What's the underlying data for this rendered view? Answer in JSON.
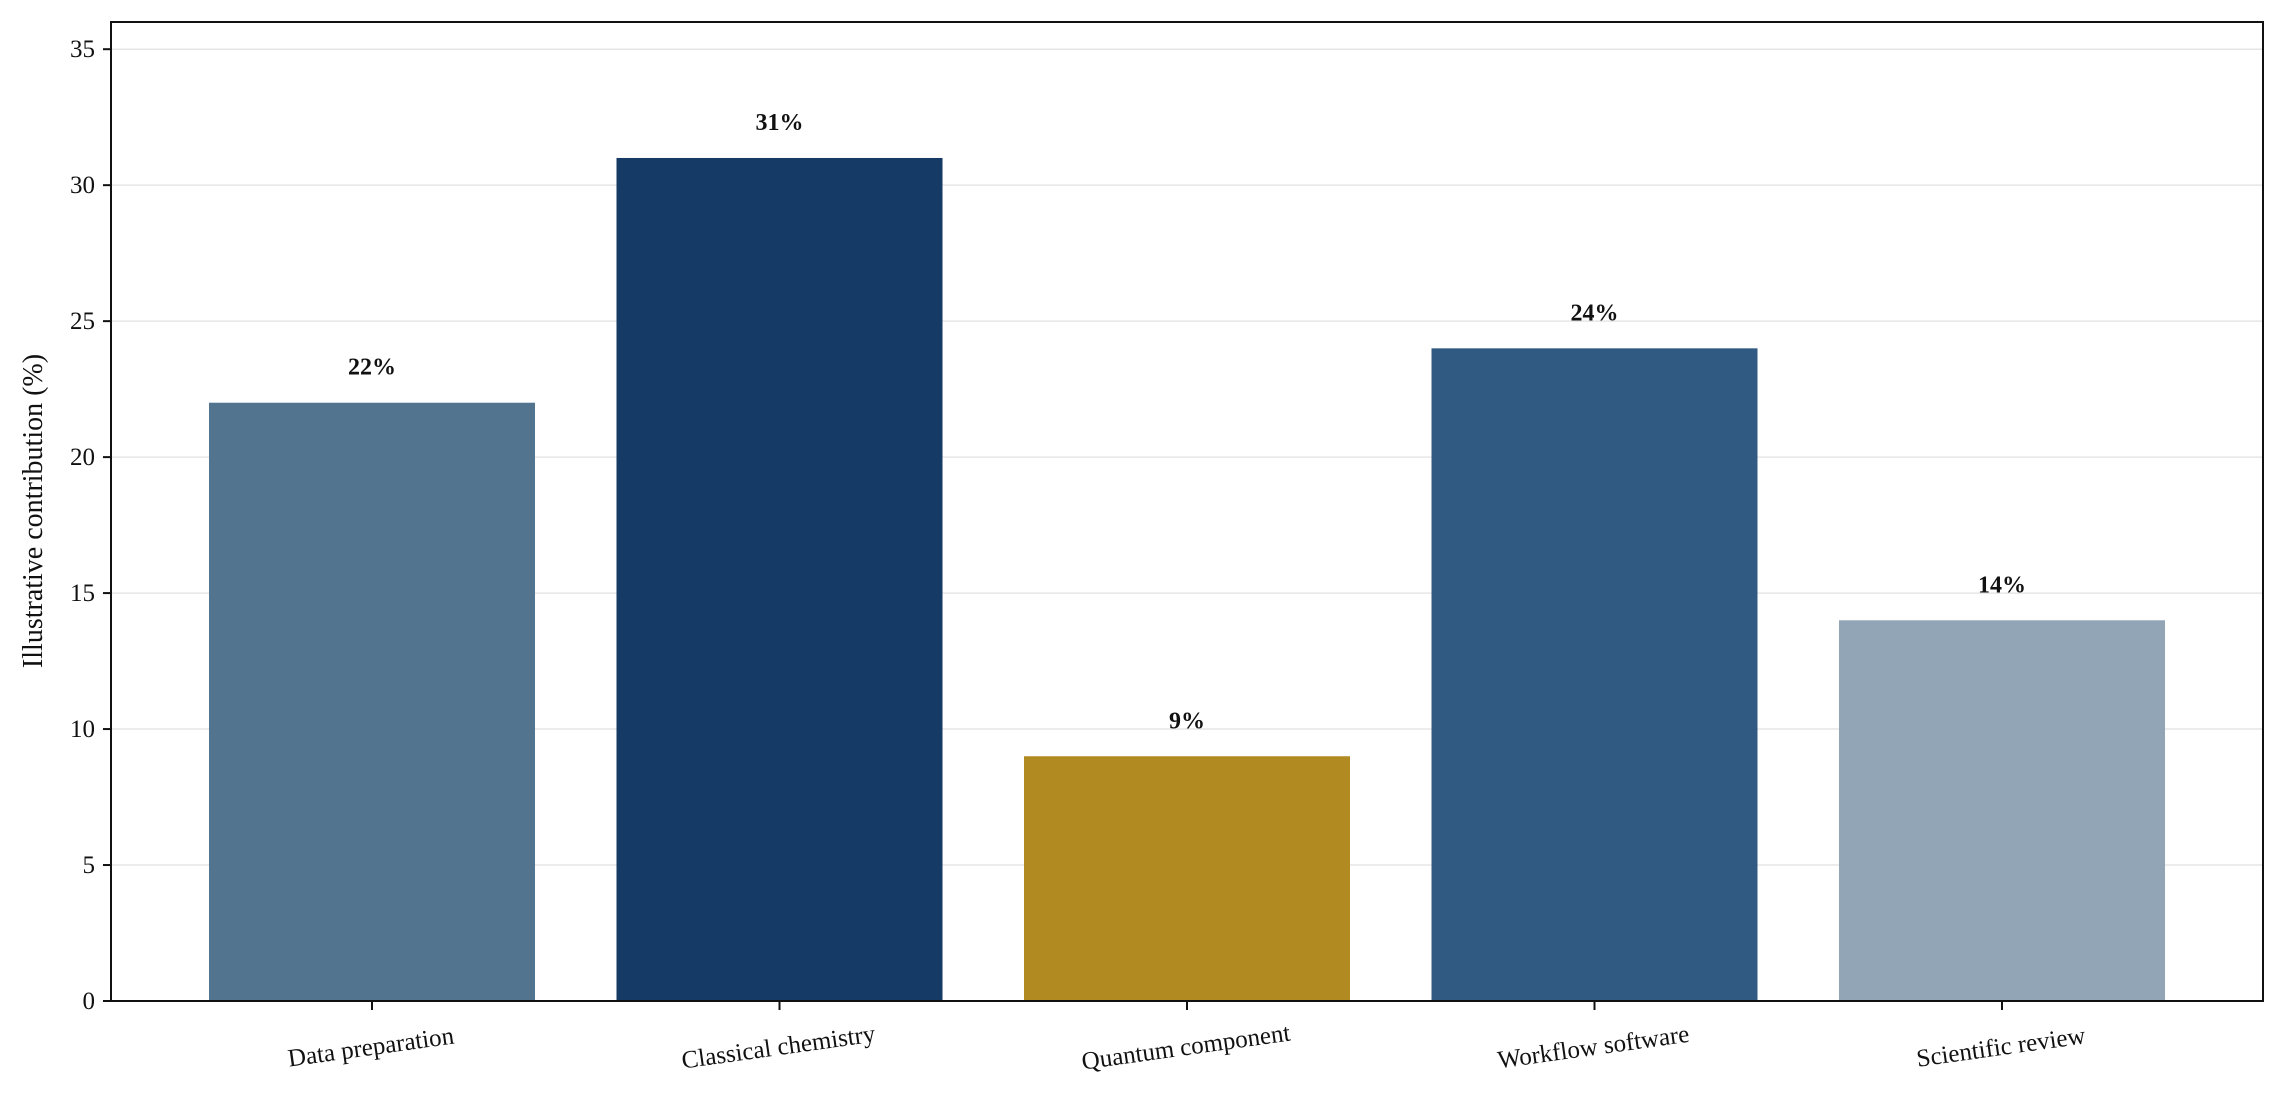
{
  "chart_data": {
    "type": "bar",
    "title": "",
    "xlabel": "",
    "ylabel": "Illustrative contribution (%)",
    "ylim": [
      0,
      36
    ],
    "yticks": [
      0,
      5,
      10,
      15,
      20,
      25,
      30,
      35
    ],
    "grid": "horizontal",
    "categories": [
      "Data preparation",
      "Classical chemistry",
      "Quantum component",
      "Workflow software",
      "Scientific review"
    ],
    "values": [
      22,
      31,
      9,
      24,
      14
    ],
    "data_labels": [
      "22%",
      "31%",
      "9%",
      "24%",
      "14%"
    ],
    "colors": [
      "#52748f",
      "#153a66",
      "#b28a22",
      "#315a82",
      "#91a5b7"
    ],
    "x_tick_rotation_deg": -8
  }
}
